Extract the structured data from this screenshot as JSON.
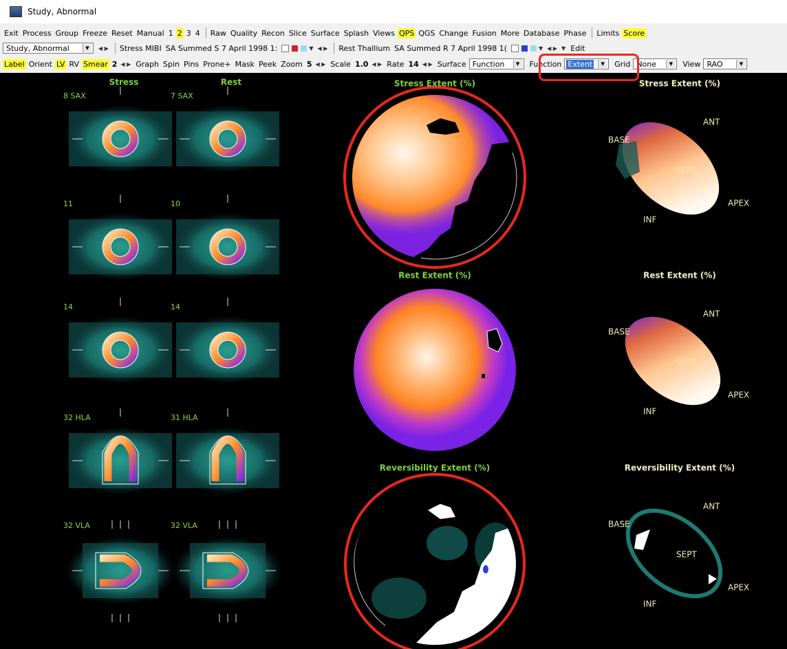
{
  "window": {
    "title": "Study, Abnormal"
  },
  "menu": [
    [
      {
        "text": "Exit"
      },
      {
        "text": "Process"
      },
      {
        "text": "Group"
      },
      {
        "text": "Freeze"
      },
      {
        "text": "Reset"
      },
      {
        "text": "Manual"
      },
      {
        "text": "1"
      },
      {
        "text": "2",
        "active": true
      },
      {
        "text": "3"
      },
      {
        "text": "4"
      }
    ],
    [
      {
        "text": "Raw"
      },
      {
        "text": "Quality"
      },
      {
        "text": "Recon"
      },
      {
        "text": "Slice"
      },
      {
        "text": "Surface"
      },
      {
        "text": "Splash"
      },
      {
        "text": "Views"
      },
      {
        "text": "QPS",
        "active": true
      },
      {
        "text": "QGS"
      },
      {
        "text": "Change"
      },
      {
        "text": "Fusion"
      },
      {
        "text": "More"
      },
      {
        "text": "Database"
      },
      {
        "text": "Phase"
      }
    ],
    [
      {
        "text": "Limits"
      },
      {
        "text": "Score",
        "active": true
      }
    ]
  ],
  "toolbar2": {
    "study": "Study, Abnormal",
    "stress": {
      "name": "Stress MIBI",
      "dataset": "SA Summed S 7 April 1998 1:"
    },
    "rest": {
      "name": "Rest Thallium",
      "dataset": "SA Summed R 7 April 1998 1("
    },
    "edit": "Edit"
  },
  "toolbar3": [
    {
      "text": "Label",
      "active": true
    },
    {
      "text": "Orient"
    },
    {
      "text": "LV",
      "active": true
    },
    {
      "text": "RV"
    },
    {
      "text": "Smear",
      "active": true,
      "value": "2"
    },
    {
      "text": "Graph"
    },
    {
      "text": "Spin"
    },
    {
      "text": "Pins"
    },
    {
      "text": "Prone+"
    },
    {
      "text": "Mask"
    },
    {
      "text": "Peek"
    },
    {
      "text": "Zoom",
      "value": "5"
    },
    {
      "text": "Scale",
      "value": "1.0"
    },
    {
      "text": "Rate",
      "value": "14"
    },
    {
      "text": "Surface",
      "select": "Function"
    },
    {
      "text": "Function",
      "select": "Extent"
    },
    {
      "text": "Grid",
      "select": "None"
    },
    {
      "text": "View",
      "select": "RAO"
    }
  ],
  "slices": {
    "headers": [
      "Stress",
      "Rest"
    ],
    "rows": [
      [
        "8 SAX",
        "7 SAX"
      ],
      [
        "11",
        "10"
      ],
      [
        "14",
        "14"
      ],
      [
        "32 HLA",
        "31 HLA"
      ],
      [
        "32 VLA",
        "32 VLA"
      ]
    ]
  },
  "polar_maps": [
    {
      "title": "Stress Extent (%)"
    },
    {
      "title": "Rest Extent (%)"
    },
    {
      "title": "Reversibility Extent (%)"
    }
  ],
  "surfaces": [
    {
      "title": "Stress Extent (%)",
      "labels": {
        "ant": "ANT",
        "base": "BASE",
        "sept": "SEPT",
        "apex": "APEX",
        "inf": "INF"
      }
    },
    {
      "title": "Rest Extent (%)",
      "labels": {
        "ant": "ANT",
        "base": "BASE",
        "sept": "SEPT",
        "apex": "APEX",
        "inf": "INF"
      }
    },
    {
      "title": "Reversibility Extent (%)",
      "labels": {
        "ant": "ANT",
        "base": "BASE",
        "sept": "SEPT",
        "apex": "APEX",
        "inf": "INF"
      }
    }
  ]
}
